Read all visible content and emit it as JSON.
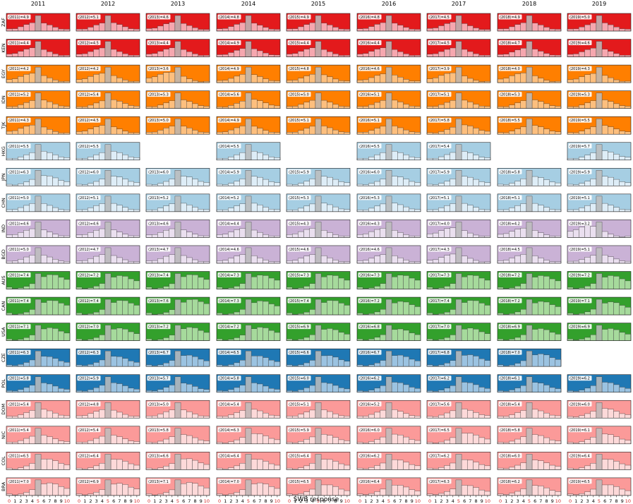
{
  "chart_data": {
    "type": "bar",
    "xlabel": "SWB response",
    "x_ticks": [
      "0",
      "1",
      "2",
      "3",
      "4",
      "5",
      "6",
      "7",
      "8",
      "9",
      "10"
    ],
    "highlight_ticks": [
      "0",
      "5",
      "10"
    ],
    "highlight_tick_color": "#d62728",
    "years": [
      "2011",
      "2012",
      "2013",
      "2014",
      "2015",
      "2016",
      "2017",
      "2018",
      "2019"
    ],
    "countries": [
      {
        "code": "ZAF",
        "color": "#e31a1c",
        "light": "#f7b7c0"
      },
      {
        "code": "KEN",
        "color": "#e31a1c",
        "light": "#f7b7c0"
      },
      {
        "code": "EGY",
        "color": "#ff7f00",
        "light": "#fdc68c"
      },
      {
        "code": "IDN",
        "color": "#ff7f00",
        "light": "#fdc68c"
      },
      {
        "code": "TJK",
        "color": "#ff7f00",
        "light": "#fdc68c"
      },
      {
        "code": "HKG",
        "color": "#a6cee3",
        "light": "#e4f1f8"
      },
      {
        "code": "JPN",
        "color": "#a6cee3",
        "light": "#e4f1f8"
      },
      {
        "code": "CHN",
        "color": "#a6cee3",
        "light": "#e4f1f8"
      },
      {
        "code": "IND",
        "color": "#cab2d6",
        "light": "#ede3f2"
      },
      {
        "code": "BGD",
        "color": "#cab2d6",
        "light": "#ede3f2"
      },
      {
        "code": "AUS",
        "color": "#33a02c",
        "light": "#b3e0a8"
      },
      {
        "code": "CAN",
        "color": "#33a02c",
        "light": "#b3e0a8"
      },
      {
        "code": "USA",
        "color": "#33a02c",
        "light": "#b3e0a8"
      },
      {
        "code": "CZE",
        "color": "#1f78b4",
        "light": "#a8cbe6"
      },
      {
        "code": "POL",
        "color": "#1f78b4",
        "light": "#a8cbe6"
      },
      {
        "code": "DOM",
        "color": "#fb9a99",
        "light": "#fde0e0"
      },
      {
        "code": "NIC",
        "color": "#fb9a99",
        "light": "#fde0e0"
      },
      {
        "code": "COL",
        "color": "#fb9a99",
        "light": "#fde0e0"
      },
      {
        "code": "BRA",
        "color": "#fb9a99",
        "light": "#fde0e0"
      }
    ],
    "means": {
      "ZAF": [
        "4.9",
        "5.1",
        "4.6",
        "4.8",
        "4.9",
        "4.8",
        "4.5",
        "4.9",
        "5.0"
      ],
      "KEN": [
        "4.4",
        "4.5",
        "4.4",
        "4.9",
        "4.4",
        "4.4",
        "4.5",
        "4.7",
        "4.6"
      ],
      "EGY": [
        "4.2",
        "4.2",
        "3.6",
        "4.9",
        "4.8",
        "4.6",
        "3.9",
        "4.0",
        "4.3"
      ],
      "IDN": [
        "5.2",
        "5.4",
        "5.3",
        "5.6",
        "5.0",
        "5.1",
        "5.1",
        "5.3",
        "5.3"
      ],
      "TJK": [
        "4.3",
        "4.5",
        "5.0",
        "4.9",
        "5.1",
        "5.1",
        "5.8",
        "5.5",
        "5.5"
      ],
      "HKG": [
        "5.5",
        "5.5",
        null,
        "5.5",
        null,
        "5.5",
        "5.4",
        null,
        "5.7"
      ],
      "JPN": [
        "6.3",
        "6.0",
        "6.0",
        "5.9",
        "5.9",
        "6.0",
        "5.9",
        "5.8",
        "5.9"
      ],
      "CHN": [
        "5.0",
        "5.1",
        "5.2",
        "5.2",
        "5.3",
        "5.3",
        "5.1",
        "5.1",
        "5.1"
      ],
      "IND": [
        "4.6",
        "4.6",
        "4.6",
        "4.4",
        "4.3",
        "4.3",
        "4.0",
        "4.2",
        "3.2"
      ],
      "BGD": [
        "5.0",
        "4.7",
        "4.7",
        "4.6",
        "4.6",
        "4.6",
        "4.3",
        "4.5",
        "5.1"
      ],
      "AUS": [
        "7.4",
        "7.2",
        "7.4",
        "7.3",
        "7.3",
        "7.3",
        "7.3",
        "7.2",
        "7.2"
      ],
      "CAN": [
        "7.4",
        "7.4",
        "7.6",
        "7.3",
        "7.4",
        "7.2",
        "7.4",
        "7.2",
        "7.1"
      ],
      "USA": [
        "7.1",
        "7.0",
        "7.2",
        "7.2",
        "6.9",
        "6.8",
        "7.0",
        "6.9",
        "6.9"
      ],
      "CZE": [
        "6.3",
        "6.3",
        "6.7",
        "6.5",
        "6.6",
        "6.7",
        "6.8",
        "7.0",
        null
      ],
      "POL": [
        "5.8",
        "5.9",
        "5.7",
        "5.8",
        "6.0",
        "6.2",
        "6.2",
        "6.1",
        "6.2"
      ],
      "DOM": [
        "5.4",
        "4.8",
        "5.0",
        "5.4",
        "5.1",
        "5.2",
        "5.6",
        "5.4",
        "6.0"
      ],
      "NIC": [
        "5.4",
        "5.4",
        "5.8",
        "6.3",
        "5.9",
        "6.0",
        "6.5",
        "5.8",
        "6.1"
      ],
      "COL": [
        "6.5",
        "6.4",
        "6.6",
        "6.4",
        "6.4",
        "6.2",
        "6.2",
        "6.0",
        "6.4"
      ],
      "BRA": [
        "7.0",
        "6.9",
        "7.1",
        "7.0",
        "6.5",
        "6.4",
        "6.3",
        "6.2",
        "6.5"
      ]
    }
  }
}
